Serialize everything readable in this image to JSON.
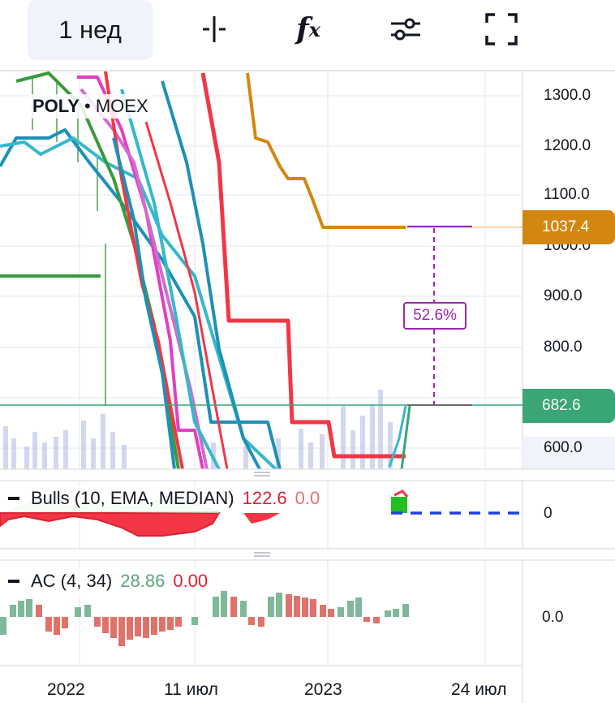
{
  "toolbar": {
    "timeframe": "1 нед",
    "icons": [
      "crosshair-icon",
      "fx-icon",
      "settings-sliders-icon",
      "fullscreen-icon"
    ],
    "fx_label": "f",
    "fx_sub": "x"
  },
  "symbol": {
    "ticker": "POLY",
    "separator": "•",
    "exchange": "MOEX"
  },
  "price_axis": {
    "ticks": [
      "1300.0",
      "1200.0",
      "1100.0",
      "1000.0",
      "900.0",
      "800.0",
      "600.0"
    ],
    "price_label_top": "1037.4",
    "price_label_current": "682.6",
    "top_label_color": "#d4870f",
    "current_label_color": "#3aa575"
  },
  "measure": {
    "percent": "52.6%",
    "color": "#9c27b0"
  },
  "indicators": [
    {
      "name": "Bulls (10, EMA, MEDIAN)",
      "value1": "122.6",
      "value2": "0.0",
      "axis": "0"
    },
    {
      "name": "AC (4, 34)",
      "value1": "28.86",
      "value2": "0.00",
      "axis": "0.0"
    }
  ],
  "time_axis": [
    "2022",
    "11 июл",
    "2023",
    "24 июл"
  ],
  "chart_data": {
    "type": "line",
    "x": [
      "2022",
      "11 июл",
      "2023",
      "24 июл"
    ],
    "ylim": [
      560,
      1340
    ],
    "series": [],
    "annotations": [
      "52.6%"
    ],
    "current_price": 682.6,
    "reference_price": 1037.4
  }
}
